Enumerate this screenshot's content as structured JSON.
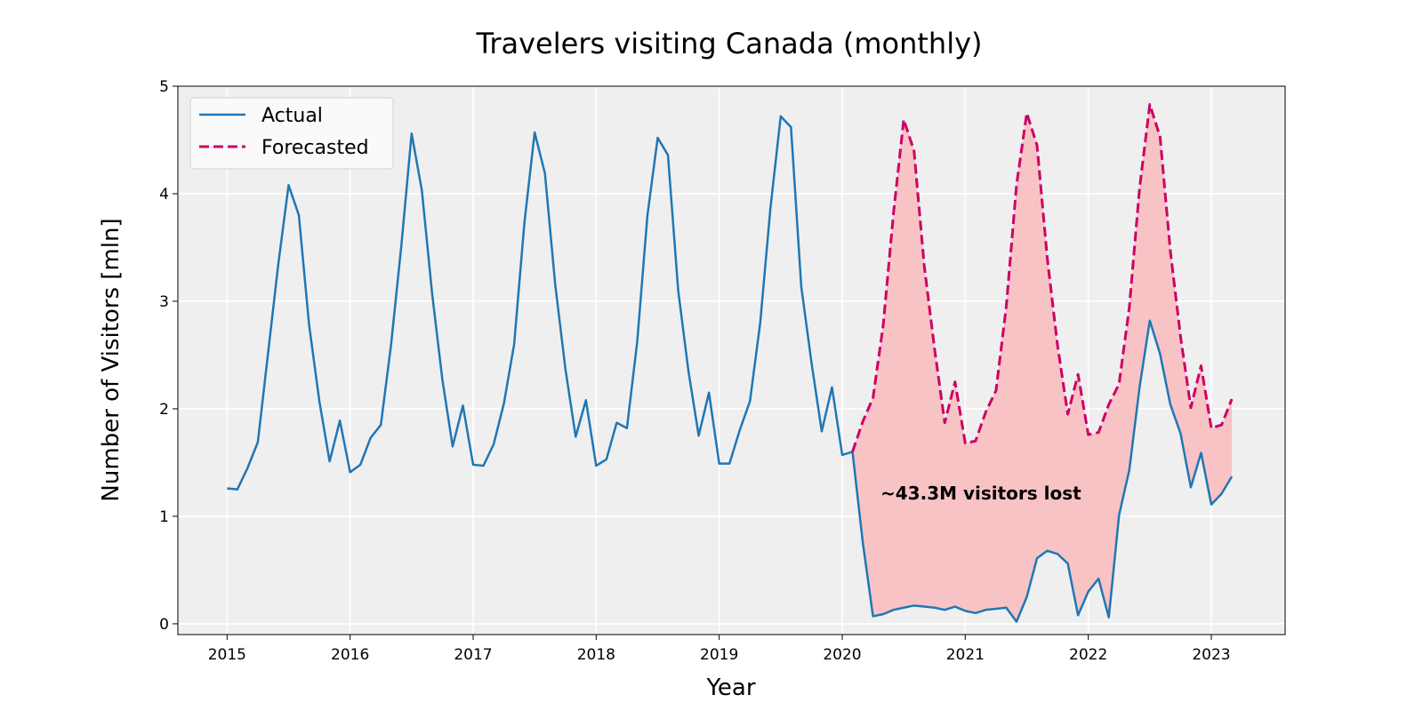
{
  "chart_data": {
    "type": "line",
    "title": "Travelers visiting Canada (monthly)",
    "xlabel": "Year",
    "ylabel": "Number of Visitors [mln]",
    "xlim": [
      2014.6,
      2023.6
    ],
    "ylim": [
      -0.1,
      5.0
    ],
    "x_ticks": [
      2015,
      2016,
      2017,
      2018,
      2019,
      2020,
      2021,
      2022,
      2023
    ],
    "y_ticks": [
      0,
      1,
      2,
      3,
      4,
      5
    ],
    "grid": true,
    "legend_position": "top-left",
    "annotation": "~43.3M visitors lost",
    "colors": {
      "actual": "#1f77b4",
      "forecast": "#cc0066",
      "fill": "#f8c3c5",
      "plot_bg": "#efefef"
    },
    "series": [
      {
        "name": "Actual",
        "style": "solid",
        "start_year": 2015,
        "values": [
          1.26,
          1.25,
          1.45,
          1.69,
          2.52,
          3.35,
          4.08,
          3.8,
          2.78,
          2.07,
          1.51,
          1.89,
          1.41,
          1.48,
          1.73,
          1.85,
          2.6,
          3.52,
          4.56,
          4.03,
          3.07,
          2.27,
          1.65,
          2.03,
          1.48,
          1.47,
          1.67,
          2.05,
          2.6,
          3.73,
          4.57,
          4.19,
          3.16,
          2.37,
          1.74,
          2.08,
          1.47,
          1.53,
          1.87,
          1.82,
          2.62,
          3.8,
          4.52,
          4.36,
          3.1,
          2.35,
          1.75,
          2.15,
          1.49,
          1.49,
          1.8,
          2.07,
          2.8,
          3.87,
          4.72,
          4.62,
          3.14,
          2.43,
          1.79,
          2.2,
          1.57,
          1.6,
          0.76,
          0.07,
          0.09,
          0.13,
          0.15,
          0.17,
          0.16,
          0.15,
          0.13,
          0.16,
          0.12,
          0.1,
          0.13,
          0.14,
          0.15,
          0.02,
          0.25,
          0.61,
          0.68,
          0.65,
          0.56,
          0.08,
          0.3,
          0.42,
          0.06,
          1.01,
          1.43,
          2.2,
          2.82,
          2.51,
          2.04,
          1.77,
          1.27,
          1.59,
          1.11,
          1.21,
          1.37
        ]
      },
      {
        "name": "Forecasted",
        "style": "dashed",
        "start_year": 2020.0833,
        "values": [
          1.6,
          1.88,
          2.1,
          2.78,
          3.82,
          4.69,
          4.4,
          3.33,
          2.56,
          1.87,
          2.25,
          1.68,
          1.7,
          1.97,
          2.17,
          2.95,
          4.08,
          4.75,
          4.45,
          3.4,
          2.59,
          1.95,
          2.32,
          1.76,
          1.78,
          2.04,
          2.23,
          2.94,
          4.05,
          4.83,
          4.53,
          3.47,
          2.67,
          2.01,
          2.4,
          1.82,
          1.85,
          2.09
        ]
      }
    ]
  }
}
